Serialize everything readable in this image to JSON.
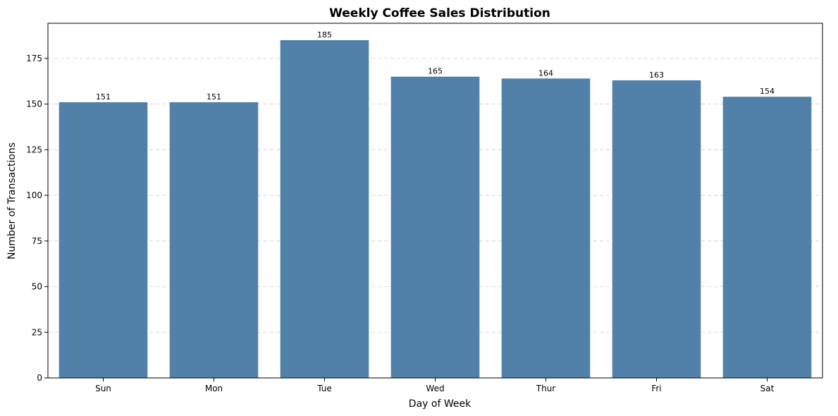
{
  "chart_data": {
    "type": "bar",
    "title": "Weekly Coffee Sales Distribution",
    "xlabel": "Day of Week",
    "ylabel": "Number of Transactions",
    "categories": [
      "Sun",
      "Mon",
      "Tue",
      "Wed",
      "Thur",
      "Fri",
      "Sat"
    ],
    "values": [
      151,
      151,
      185,
      165,
      164,
      163,
      154
    ],
    "ylim": [
      0,
      194.25
    ],
    "yticks": [
      0,
      25,
      50,
      75,
      100,
      125,
      150,
      175
    ],
    "grid": true,
    "bar_color": "#5181a8"
  }
}
